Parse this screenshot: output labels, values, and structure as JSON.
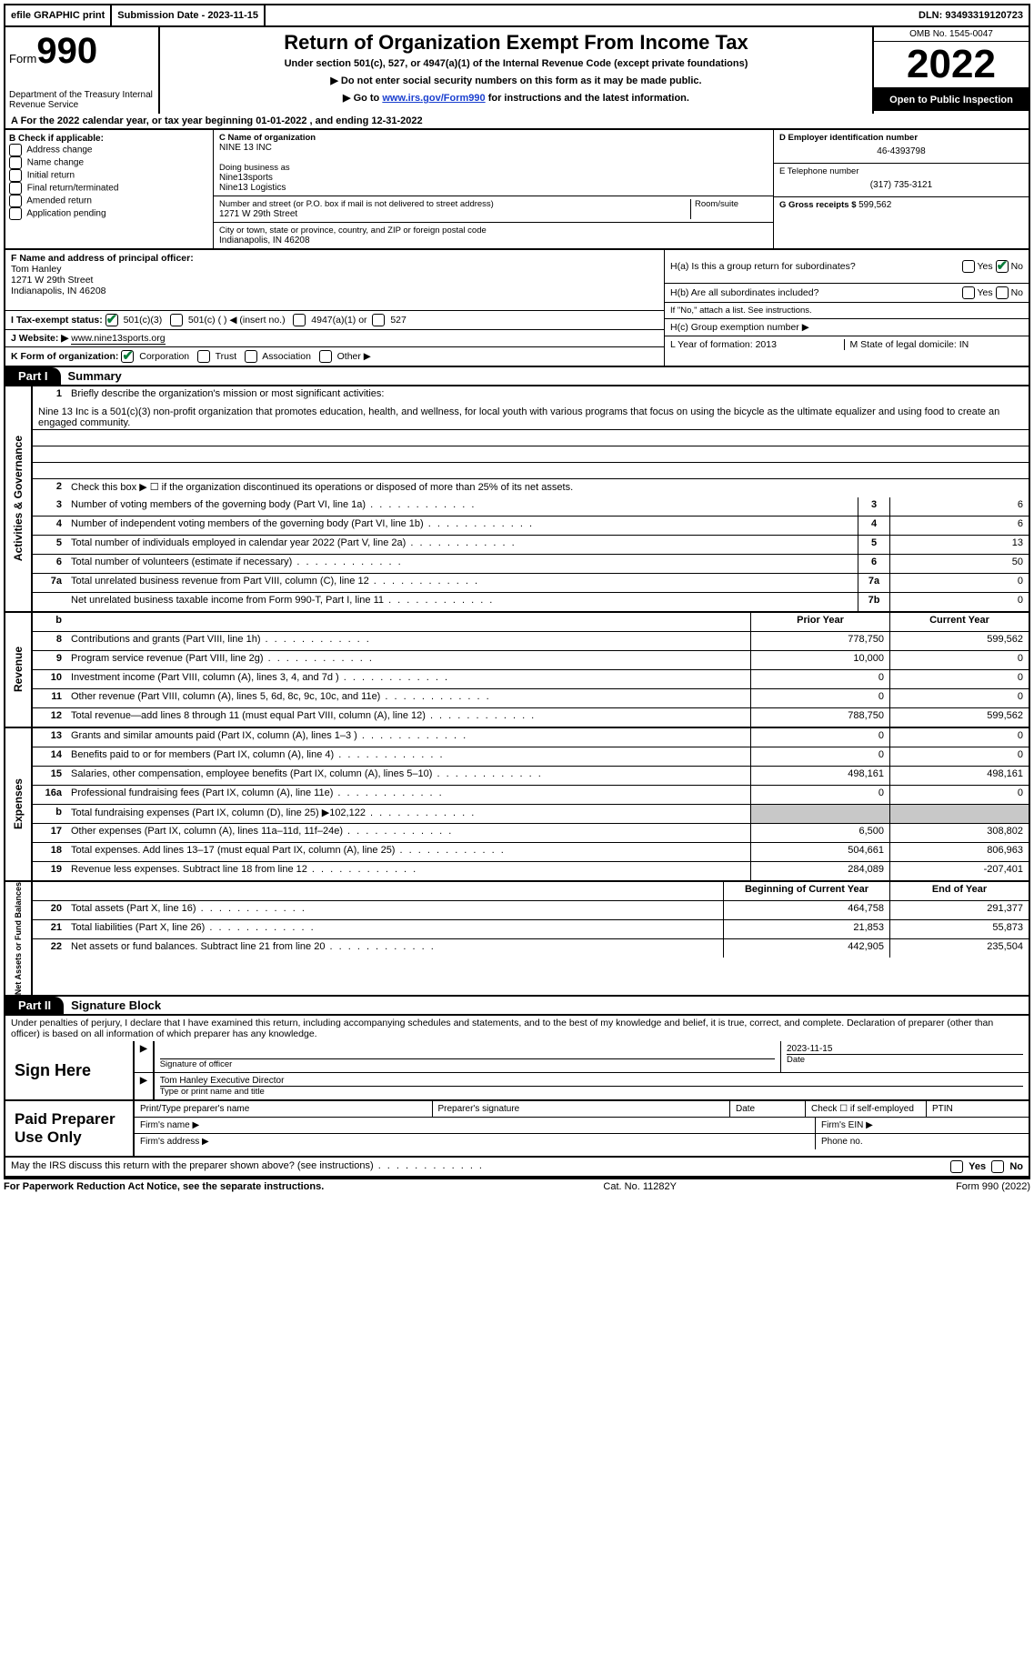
{
  "topbar": {
    "efile": "efile GRAPHIC print",
    "submission": "Submission Date - 2023-11-15",
    "dln": "DLN: 93493319120723"
  },
  "header": {
    "form_word": "Form",
    "form_num": "990",
    "dept": "Department of the Treasury Internal Revenue Service",
    "title": "Return of Organization Exempt From Income Tax",
    "sub1": "Under section 501(c), 527, or 4947(a)(1) of the Internal Revenue Code (except private foundations)",
    "sub2": "▶ Do not enter social security numbers on this form as it may be made public.",
    "sub3_pre": "▶ Go to ",
    "sub3_link": "www.irs.gov/Form990",
    "sub3_post": " for instructions and the latest information.",
    "omb": "OMB No. 1545-0047",
    "year": "2022",
    "open": "Open to Public Inspection"
  },
  "row_a": "A For the 2022 calendar year, or tax year beginning 01-01-2022    , and ending 12-31-2022",
  "box_b": {
    "label": "B Check if applicable:",
    "items": [
      "Address change",
      "Name change",
      "Initial return",
      "Final return/terminated",
      "Amended return",
      "Application pending"
    ]
  },
  "box_c": {
    "name_label": "C Name of organization",
    "name": "NINE 13 INC",
    "dba_label": "Doing business as",
    "dba": "Nine13sports\nNine13 Logistics",
    "street_label": "Number and street (or P.O. box if mail is not delivered to street address)",
    "room_label": "Room/suite",
    "street": "1271 W 29th Street",
    "city_label": "City or town, state or province, country, and ZIP or foreign postal code",
    "city": "Indianapolis, IN  46208"
  },
  "box_d": {
    "ein_label": "D Employer identification number",
    "ein": "46-4393798",
    "phone_label": "E Telephone number",
    "phone": "(317) 735-3121",
    "gross_label": "G Gross receipts $ ",
    "gross": "599,562"
  },
  "box_f": {
    "label": "F  Name and address of principal officer:",
    "name": "Tom Hanley",
    "addr1": "1271 W 29th Street",
    "addr2": "Indianapolis, IN  46208"
  },
  "box_h": {
    "a": "H(a)  Is this a group return for subordinates?",
    "b": "H(b)  Are all subordinates included?",
    "b_note": "If \"No,\" attach a list. See instructions.",
    "c": "H(c)  Group exemption number ▶"
  },
  "row_i": {
    "label": "I    Tax-exempt status:",
    "opt1": "501(c)(3)",
    "opt2": "501(c) (  ) ◀ (insert no.)",
    "opt3": "4947(a)(1) or",
    "opt4": "527"
  },
  "row_j": {
    "label": "J    Website: ▶  ",
    "val": "www.nine13sports.org"
  },
  "row_k": {
    "label": "K Form of organization:",
    "opts": [
      "Corporation",
      "Trust",
      "Association",
      "Other ▶"
    ]
  },
  "row_l": "L Year of formation: 2013",
  "row_m": "M State of legal domicile: IN",
  "part1": {
    "header": "Part I",
    "title": "Summary",
    "line1_label": "Briefly describe the organization's mission or most significant activities:",
    "mission": "Nine 13 Inc is a 501(c)(3) non-profit organization that promotes education, health, and wellness, for local youth with various programs that focus on using the bicycle as the ultimate equalizer and using food to create an engaged community.",
    "line2": "Check this box ▶ ☐  if the organization discontinued its operations or disposed of more than 25% of its net assets.",
    "rows_gov": [
      {
        "n": "3",
        "d": "Number of voting members of the governing body (Part VI, line 1a)",
        "b": "3",
        "v": "6"
      },
      {
        "n": "4",
        "d": "Number of independent voting members of the governing body (Part VI, line 1b)",
        "b": "4",
        "v": "6"
      },
      {
        "n": "5",
        "d": "Total number of individuals employed in calendar year 2022 (Part V, line 2a)",
        "b": "5",
        "v": "13"
      },
      {
        "n": "6",
        "d": "Total number of volunteers (estimate if necessary)",
        "b": "6",
        "v": "50"
      },
      {
        "n": "7a",
        "d": "Total unrelated business revenue from Part VIII, column (C), line 12",
        "b": "7a",
        "v": "0"
      },
      {
        "n": "",
        "d": "Net unrelated business taxable income from Form 990-T, Part I, line 11",
        "b": "7b",
        "v": "0"
      }
    ],
    "col_prior": "Prior Year",
    "col_current": "Current Year",
    "rows_rev": [
      {
        "n": "8",
        "d": "Contributions and grants (Part VIII, line 1h)",
        "p": "778,750",
        "c": "599,562"
      },
      {
        "n": "9",
        "d": "Program service revenue (Part VIII, line 2g)",
        "p": "10,000",
        "c": "0"
      },
      {
        "n": "10",
        "d": "Investment income (Part VIII, column (A), lines 3, 4, and 7d )",
        "p": "0",
        "c": "0"
      },
      {
        "n": "11",
        "d": "Other revenue (Part VIII, column (A), lines 5, 6d, 8c, 9c, 10c, and 11e)",
        "p": "0",
        "c": "0"
      },
      {
        "n": "12",
        "d": "Total revenue—add lines 8 through 11 (must equal Part VIII, column (A), line 12)",
        "p": "788,750",
        "c": "599,562"
      }
    ],
    "rows_exp": [
      {
        "n": "13",
        "d": "Grants and similar amounts paid (Part IX, column (A), lines 1–3 )",
        "p": "0",
        "c": "0"
      },
      {
        "n": "14",
        "d": "Benefits paid to or for members (Part IX, column (A), line 4)",
        "p": "0",
        "c": "0"
      },
      {
        "n": "15",
        "d": "Salaries, other compensation, employee benefits (Part IX, column (A), lines 5–10)",
        "p": "498,161",
        "c": "498,161"
      },
      {
        "n": "16a",
        "d": "Professional fundraising fees (Part IX, column (A), line 11e)",
        "p": "0",
        "c": "0"
      },
      {
        "n": "b",
        "d": "Total fundraising expenses (Part IX, column (D), line 25) ▶102,122",
        "p": "grey",
        "c": "grey"
      },
      {
        "n": "17",
        "d": "Other expenses (Part IX, column (A), lines 11a–11d, 11f–24e)",
        "p": "6,500",
        "c": "308,802"
      },
      {
        "n": "18",
        "d": "Total expenses. Add lines 13–17 (must equal Part IX, column (A), line 25)",
        "p": "504,661",
        "c": "806,963"
      },
      {
        "n": "19",
        "d": "Revenue less expenses. Subtract line 18 from line 12",
        "p": "284,089",
        "c": "-207,401"
      }
    ],
    "col_begin": "Beginning of Current Year",
    "col_end": "End of Year",
    "rows_net": [
      {
        "n": "20",
        "d": "Total assets (Part X, line 16)",
        "p": "464,758",
        "c": "291,377"
      },
      {
        "n": "21",
        "d": "Total liabilities (Part X, line 26)",
        "p": "21,853",
        "c": "55,873"
      },
      {
        "n": "22",
        "d": "Net assets or fund balances. Subtract line 21 from line 20",
        "p": "442,905",
        "c": "235,504"
      }
    ]
  },
  "side_labels": {
    "gov": "Activities & Governance",
    "rev": "Revenue",
    "exp": "Expenses",
    "net": "Net Assets or Fund Balances"
  },
  "part2": {
    "header": "Part II",
    "title": "Signature Block",
    "decl": "Under penalties of perjury, I declare that I have examined this return, including accompanying schedules and statements, and to the best of my knowledge and belief, it is true, correct, and complete. Declaration of preparer (other than officer) is based on all information of which preparer has any knowledge.",
    "sign_here": "Sign Here",
    "sig_officer": "Signature of officer",
    "sig_date": "2023-11-15",
    "date_label": "Date",
    "officer_name": "Tom Hanley  Executive Director",
    "type_name": "Type or print name and title",
    "paid": "Paid Preparer Use Only",
    "prep_name": "Print/Type preparer's name",
    "prep_sig": "Preparer's signature",
    "prep_date": "Date",
    "check_self": "Check ☐ if self-employed",
    "ptin": "PTIN",
    "firm_name": "Firm's name   ▶",
    "firm_ein": "Firm's EIN ▶",
    "firm_addr": "Firm's address ▶",
    "phone": "Phone no.",
    "may_irs": "May the IRS discuss this return with the preparer shown above? (see instructions)",
    "yes": "Yes",
    "no": "No"
  },
  "footer": {
    "left": "For Paperwork Reduction Act Notice, see the separate instructions.",
    "center": "Cat. No. 11282Y",
    "right": "Form 990 (2022)"
  }
}
